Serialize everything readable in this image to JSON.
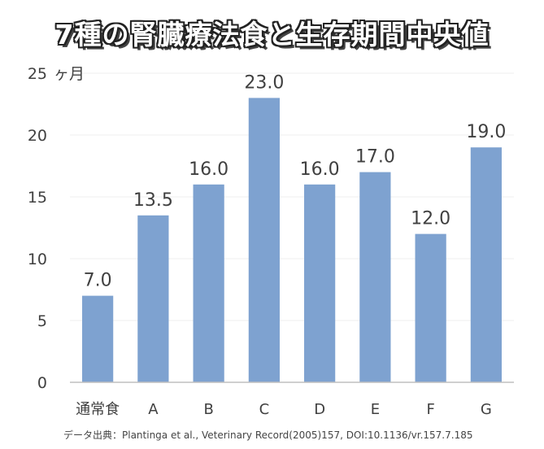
{
  "colors": {
    "bar": "#7ea2d0",
    "axis": "#bfbfbf",
    "grid": "#efefef",
    "text": "#404040"
  },
  "chart_data": {
    "type": "bar",
    "title": "7種の腎臓療法食と生存期間中央値",
    "ylabel": "ヶ月",
    "categories": [
      "通常食",
      "A",
      "B",
      "C",
      "D",
      "E",
      "F",
      "G"
    ],
    "values": [
      7.0,
      13.5,
      16.0,
      23.0,
      16.0,
      17.0,
      12.0,
      19.0
    ],
    "data_labels": [
      "7.0",
      "13.5",
      "16.0",
      "23.0",
      "16.0",
      "17.0",
      "12.0",
      "19.0"
    ],
    "ylim": [
      0,
      25
    ],
    "yticks": [
      0,
      5,
      10,
      15,
      20,
      25
    ],
    "grid": true,
    "legend": "none"
  },
  "source": "データ出典：Plantinga et al., Veterinary Record(2005)157, DOI:10.1136/vr.157.7.185"
}
